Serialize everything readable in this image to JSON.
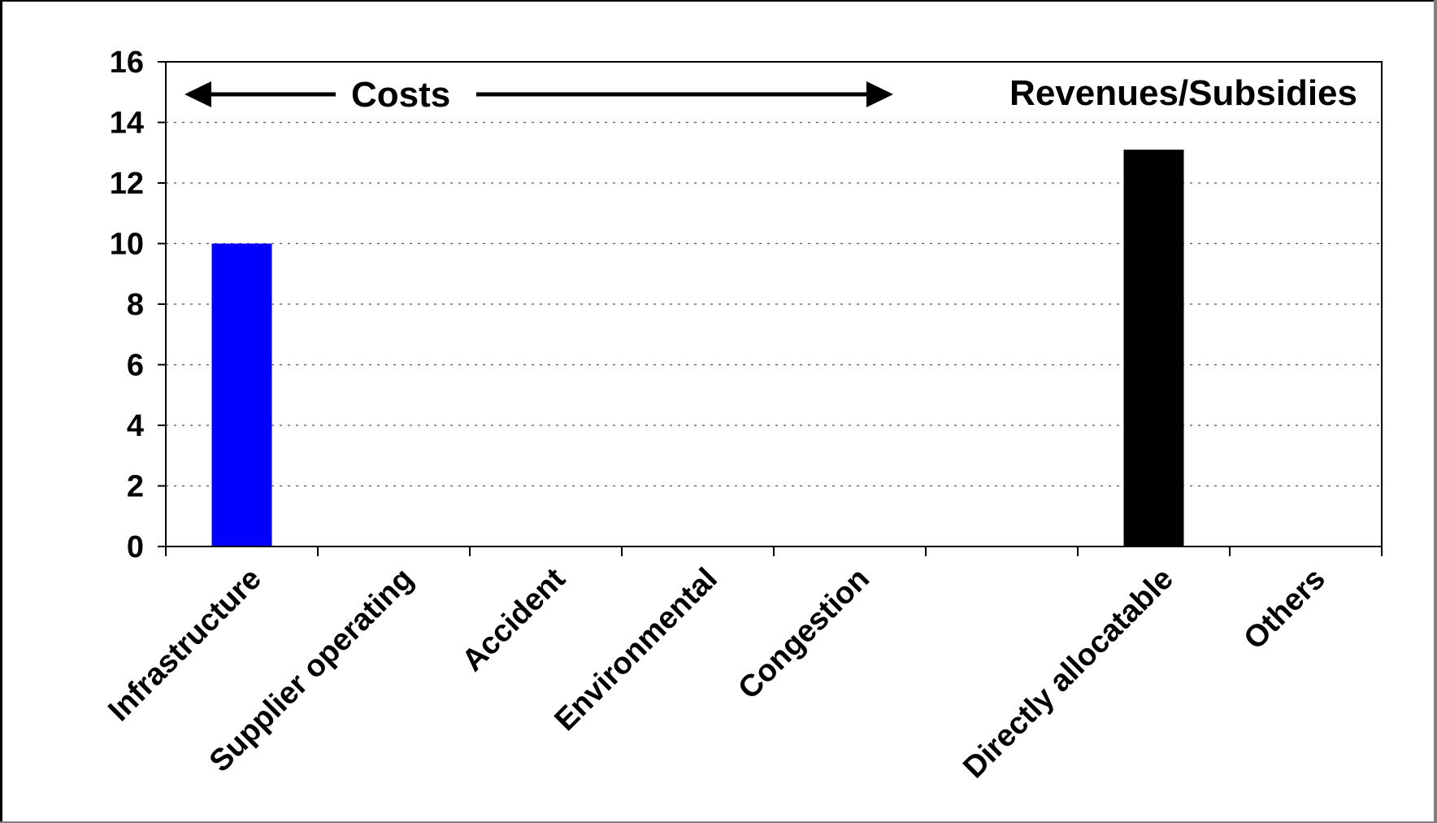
{
  "chart_data": {
    "type": "bar",
    "categories": [
      "Infrastructure",
      "Supplier operating",
      "Accident",
      "Environmental",
      "Congestion",
      "",
      "Directly allocatable",
      "Others"
    ],
    "values": [
      10,
      0,
      0,
      0,
      0,
      0,
      13.1,
      0
    ],
    "colors": [
      "#0000ff",
      "#0000ff",
      "#0000ff",
      "#0000ff",
      "#0000ff",
      "#0000ff",
      "#000000",
      "#000000"
    ],
    "ylim": [
      0,
      16
    ],
    "yticks": [
      0,
      2,
      4,
      6,
      8,
      10,
      12,
      14,
      16
    ],
    "grid": true,
    "title": "",
    "xlabel": "",
    "ylabel": "",
    "annotations": {
      "costs": "Costs",
      "revenues": "Revenues/Subsidies"
    }
  }
}
